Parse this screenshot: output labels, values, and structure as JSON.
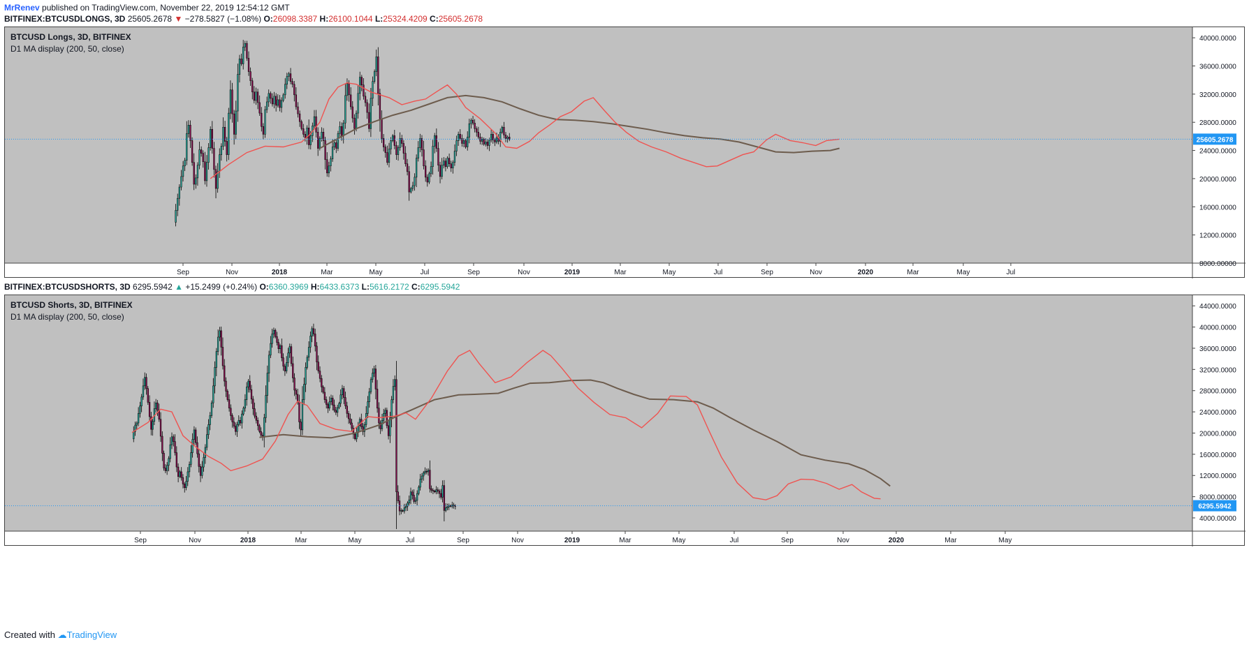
{
  "published": {
    "author": "MrRenev",
    "text": "published on TradingView.com, November 22, 2019 12:54:12 GMT"
  },
  "footer": {
    "prefix": "Created with",
    "brand": "TradingView"
  },
  "colors": {
    "pane_bg": "#c0c0c0",
    "candle_up": "#26a69a",
    "candle_down": "#880e4f",
    "ma_fast": "#ef5350",
    "ma_slow": "#6d5c4d",
    "price_line": "#2196f3"
  },
  "panes": [
    {
      "header": {
        "symbol": "BITFINEX:BTCUSDLONGS, 3D",
        "last": "25605.2678",
        "direction": "down",
        "change": "−278.5827 (−1.08%)",
        "o_label": "O:",
        "o": "26098.3387",
        "h_label": "H:",
        "h": "26100.1044",
        "l_label": "L:",
        "l": "25324.4209",
        "c_label": "C:",
        "c": "25605.2678"
      },
      "legend": {
        "title": "BTCUSD Longs, 3D, BITFINEX",
        "indicator": "D1 MA display (200, 50, close)"
      },
      "price_label": "25605.2678"
    },
    {
      "header": {
        "symbol": "BITFINEX:BTCUSDSHORTS, 3D",
        "last": "6295.5942",
        "direction": "up",
        "change": "+15.2499 (+0.24%)",
        "o_label": "O:",
        "o": "6360.3969",
        "h_label": "H:",
        "h": "6433.6373",
        "l_label": "L:",
        "l": "5616.2172",
        "c_label": "C:",
        "c": "6295.5942"
      },
      "legend": {
        "title": "BTCUSD Shorts, 3D, BITFINEX",
        "indicator": "D1 MA display (200, 50, close)"
      },
      "price_label": "6295.5942"
    }
  ],
  "chart_data": [
    {
      "type": "candlestick",
      "title": "BTCUSD Longs, 3D, BITFINEX",
      "indicator": "D1 MA display (200, 50, close)",
      "x_ticks": [
        "Sep",
        "Nov",
        "2018",
        "Mar",
        "May",
        "Jul",
        "Sep",
        "Nov",
        "2019",
        "Mar",
        "May",
        "Jul",
        "Sep",
        "Nov",
        "2020",
        "Mar",
        "May",
        "Jul"
      ],
      "y_ticks": [
        "8000.00000",
        "12000.0000",
        "16000.0000",
        "20000.0000",
        "24000.0000",
        "28000.0000",
        "32000.0000",
        "36000.0000",
        "40000.0000"
      ],
      "ylim": [
        8000,
        41500
      ],
      "last_price": 25605.2678,
      "close_series": [
        13800,
        15500,
        17200,
        18800,
        20300,
        21800,
        22600,
        26400,
        27600,
        25400,
        22300,
        19200,
        20100,
        21900,
        24100,
        23600,
        22400,
        19700,
        22300,
        24400,
        27000,
        24300,
        21300,
        18600,
        21000,
        23400,
        24600,
        27300,
        25300,
        23400,
        29300,
        32600,
        29200,
        26300,
        29600,
        34800,
        37000,
        36300,
        38700,
        39200,
        37100,
        35200,
        33900,
        32300,
        31100,
        32300,
        30800,
        29300,
        27400,
        26300,
        29800,
        30900,
        32100,
        31400,
        30600,
        31700,
        30400,
        31200,
        30100,
        31100,
        31900,
        33400,
        34500,
        34900,
        33800,
        33400,
        31900,
        30200,
        29200,
        28100,
        27100,
        26300,
        25800,
        27200,
        24800,
        26100,
        27500,
        28800,
        26600,
        24300,
        25700,
        26600,
        25400,
        22700,
        20800,
        21800,
        22800,
        24500,
        25100,
        24300,
        26400,
        27400,
        26100,
        27900,
        31800,
        33500,
        31900,
        30200,
        28600,
        27100,
        29300,
        32100,
        34400,
        33300,
        31700,
        30800,
        29400,
        27100,
        31400,
        33800,
        35200,
        37300,
        32100,
        28400,
        25700,
        24500,
        23700,
        22300,
        24200,
        25400,
        26100,
        24700,
        23400,
        24400,
        25700,
        25000,
        23600,
        22100,
        21000,
        18100,
        18600,
        19000,
        20200,
        22900,
        24400,
        25700,
        24100,
        21800,
        20200,
        19500,
        20700,
        21700,
        24600,
        26100,
        24300,
        21900,
        20300,
        21900,
        22500,
        21700,
        22900,
        22100,
        21500,
        22300,
        23900,
        25400,
        26300,
        25700,
        25000,
        25400,
        24500,
        25900,
        27800,
        28300,
        27900,
        27100,
        26600,
        25900,
        25300,
        25600,
        24900,
        25200,
        24700,
        25500,
        26300,
        25500,
        25200,
        25800,
        25300,
        26600,
        27300,
        26200,
        25700,
        25900,
        25605
      ],
      "ma_fast_points": [
        [
          20,
          20000
        ],
        [
          30,
          22000
        ],
        [
          40,
          23700
        ],
        [
          50,
          24600
        ],
        [
          60,
          24500
        ],
        [
          70,
          25200
        ],
        [
          75,
          26400
        ],
        [
          80,
          28000
        ],
        [
          85,
          31300
        ],
        [
          90,
          33000
        ],
        [
          95,
          33600
        ],
        [
          100,
          33400
        ],
        [
          108,
          32300
        ],
        [
          118,
          31500
        ],
        [
          125,
          30500
        ],
        [
          132,
          31000
        ],
        [
          138,
          31300
        ],
        [
          145,
          32500
        ],
        [
          150,
          33300
        ],
        [
          155,
          32000
        ],
        [
          160,
          30100
        ],
        [
          168,
          28500
        ],
        [
          176,
          26500
        ],
        [
          182,
          24500
        ],
        [
          188,
          24300
        ],
        [
          195,
          25300
        ],
        [
          200,
          26500
        ],
        [
          206,
          27600
        ],
        [
          212,
          28800
        ],
        [
          218,
          29500
        ],
        [
          225,
          31000
        ],
        [
          230,
          31500
        ],
        [
          236,
          29700
        ],
        [
          242,
          28000
        ],
        [
          248,
          26600
        ],
        [
          255,
          25300
        ],
        [
          262,
          24500
        ],
        [
          270,
          23800
        ],
        [
          278,
          22900
        ],
        [
          285,
          22300
        ],
        [
          292,
          21700
        ],
        [
          298,
          21800
        ],
        [
          305,
          22600
        ],
        [
          312,
          23400
        ],
        [
          318,
          23800
        ],
        [
          325,
          25500
        ],
        [
          330,
          26300
        ],
        [
          338,
          25400
        ],
        [
          345,
          25100
        ],
        [
          352,
          24700
        ],
        [
          358,
          25400
        ],
        [
          365,
          25600
        ]
      ],
      "ma_slow_points": [
        [
          80,
          24300
        ],
        [
          90,
          25700
        ],
        [
          100,
          27100
        ],
        [
          110,
          28100
        ],
        [
          120,
          29000
        ],
        [
          130,
          29700
        ],
        [
          140,
          30600
        ],
        [
          150,
          31500
        ],
        [
          160,
          31800
        ],
        [
          170,
          31500
        ],
        [
          180,
          30900
        ],
        [
          190,
          29900
        ],
        [
          200,
          29000
        ],
        [
          210,
          28400
        ],
        [
          220,
          28300
        ],
        [
          230,
          28100
        ],
        [
          240,
          27800
        ],
        [
          250,
          27400
        ],
        [
          260,
          27000
        ],
        [
          270,
          26500
        ],
        [
          280,
          26100
        ],
        [
          290,
          25800
        ],
        [
          300,
          25600
        ],
        [
          310,
          25200
        ],
        [
          320,
          24500
        ],
        [
          330,
          23800
        ],
        [
          340,
          23700
        ],
        [
          350,
          23900
        ],
        [
          360,
          24000
        ],
        [
          365,
          24300
        ]
      ]
    },
    {
      "type": "candlestick",
      "title": "BTCUSD Shorts, 3D, BITFINEX",
      "indicator": "D1 MA display (200, 50, close)",
      "x_ticks": [
        "Sep",
        "Nov",
        "2018",
        "Mar",
        "May",
        "Jul",
        "Sep",
        "Nov",
        "2019",
        "Mar",
        "May",
        "Jul",
        "Sep",
        "Nov",
        "2020",
        "Mar",
        "May"
      ],
      "y_ticks": [
        "4000.00000",
        "8000.00000",
        "12000.0000",
        "16000.0000",
        "20000.0000",
        "24000.0000",
        "28000.0000",
        "32000.0000",
        "36000.0000",
        "40000.0000",
        "44000.0000"
      ],
      "ylim": [
        1500,
        46000
      ],
      "last_price": 6295.5942,
      "close_series": [
        18900,
        20300,
        21500,
        21900,
        23700,
        25100,
        26800,
        28900,
        30500,
        28400,
        25800,
        23100,
        20700,
        22200,
        24600,
        25700,
        24300,
        22600,
        19400,
        16200,
        13400,
        12900,
        13900,
        15200,
        17800,
        19300,
        18400,
        16300,
        13600,
        11800,
        12700,
        11600,
        10400,
        9700,
        10900,
        12700,
        14100,
        16300,
        18800,
        20600,
        18200,
        16100,
        13700,
        12000,
        13600,
        15400,
        17300,
        19700,
        21600,
        23300,
        25700,
        28900,
        32400,
        35400,
        38100,
        39300,
        36200,
        32700,
        29800,
        27900,
        26300,
        24700,
        23300,
        22100,
        21300,
        20300,
        21600,
        22400,
        21900,
        23600,
        24700,
        26300,
        28700,
        29800,
        28200,
        26400,
        24600,
        23200,
        22400,
        21400,
        20300,
        19600,
        19200,
        22900,
        27100,
        31300,
        34700,
        36900,
        38700,
        39400,
        38200,
        37100,
        35900,
        36500,
        34200,
        32600,
        31700,
        33300,
        35100,
        36300,
        33100,
        30400,
        28100,
        27300,
        25900,
        22100,
        20600,
        26300,
        29200,
        32400,
        34300,
        36200,
        38300,
        39700,
        38700,
        36400,
        33400,
        31700,
        30300,
        28700,
        27700,
        26300,
        25400,
        24700,
        25900,
        26600,
        25300,
        24300,
        23900,
        24800,
        25600,
        27200,
        28400,
        26700,
        25100,
        23700,
        22700,
        21900,
        20900,
        19800,
        18900,
        20100,
        21400,
        22600,
        21200,
        20300,
        21600,
        23700,
        25900,
        27800,
        30100,
        31300,
        32100,
        28300,
        24700,
        21900,
        20800,
        22400,
        23700,
        24300,
        21400,
        19500,
        22900,
        26300,
        28800,
        30100,
        8900,
        7200,
        5300,
        5400,
        5300,
        5900,
        6200,
        6800,
        7400,
        8900,
        8300,
        7100,
        7300,
        8600,
        9800,
        11300,
        11900,
        12500,
        12800,
        12700,
        13000,
        9500,
        9200,
        9100,
        8900,
        9300,
        9100,
        8600,
        7900,
        10100,
        5400,
        5900,
        6100,
        6300,
        6200,
        6400,
        6300,
        6295
      ],
      "ma_fast_points": [
        [
          0,
          20100
        ],
        [
          10,
          22000
        ],
        [
          18,
          24500
        ],
        [
          25,
          24000
        ],
        [
          32,
          19500
        ],
        [
          40,
          17400
        ],
        [
          48,
          15600
        ],
        [
          56,
          14300
        ],
        [
          62,
          12900
        ],
        [
          72,
          13800
        ],
        [
          82,
          15100
        ],
        [
          90,
          18500
        ],
        [
          98,
          23500
        ],
        [
          104,
          26000
        ],
        [
          110,
          25200
        ],
        [
          118,
          21800
        ],
        [
          128,
          20700
        ],
        [
          138,
          20300
        ],
        [
          148,
          23100
        ],
        [
          155,
          22900
        ],
        [
          165,
          23200
        ],
        [
          172,
          23800
        ],
        [
          178,
          22600
        ],
        [
          188,
          26600
        ],
        [
          198,
          31700
        ],
        [
          205,
          34500
        ],
        [
          212,
          35600
        ],
        [
          218,
          33100
        ],
        [
          228,
          29500
        ],
        [
          238,
          30600
        ],
        [
          248,
          33300
        ],
        [
          258,
          35600
        ],
        [
          263,
          34600
        ],
        [
          270,
          32200
        ],
        [
          280,
          28500
        ],
        [
          290,
          25800
        ],
        [
          300,
          23500
        ],
        [
          310,
          22900
        ],
        [
          320,
          21000
        ],
        [
          330,
          23700
        ],
        [
          338,
          27000
        ],
        [
          348,
          26900
        ],
        [
          355,
          25300
        ],
        [
          362,
          20600
        ],
        [
          370,
          15500
        ],
        [
          380,
          10600
        ],
        [
          390,
          7800
        ],
        [
          398,
          7400
        ],
        [
          405,
          8200
        ],
        [
          412,
          10400
        ],
        [
          420,
          11300
        ],
        [
          428,
          11200
        ],
        [
          436,
          10500
        ],
        [
          444,
          9400
        ],
        [
          452,
          10300
        ],
        [
          458,
          8900
        ],
        [
          466,
          7700
        ],
        [
          470,
          7600
        ]
      ],
      "ma_slow_points": [
        [
          80,
          19200
        ],
        [
          95,
          19700
        ],
        [
          110,
          19300
        ],
        [
          125,
          19100
        ],
        [
          140,
          20000
        ],
        [
          155,
          21500
        ],
        [
          165,
          23000
        ],
        [
          175,
          24300
        ],
        [
          190,
          26300
        ],
        [
          205,
          27200
        ],
        [
          215,
          27300
        ],
        [
          230,
          27500
        ],
        [
          240,
          28500
        ],
        [
          250,
          29400
        ],
        [
          262,
          29500
        ],
        [
          275,
          29900
        ],
        [
          288,
          30000
        ],
        [
          296,
          29500
        ],
        [
          305,
          28400
        ],
        [
          315,
          27300
        ],
        [
          325,
          26400
        ],
        [
          340,
          26300
        ],
        [
          355,
          25900
        ],
        [
          365,
          24700
        ],
        [
          375,
          23000
        ],
        [
          390,
          20600
        ],
        [
          405,
          18400
        ],
        [
          420,
          15900
        ],
        [
          435,
          14900
        ],
        [
          450,
          14200
        ],
        [
          460,
          13100
        ],
        [
          470,
          11400
        ],
        [
          476,
          10000
        ]
      ]
    }
  ]
}
